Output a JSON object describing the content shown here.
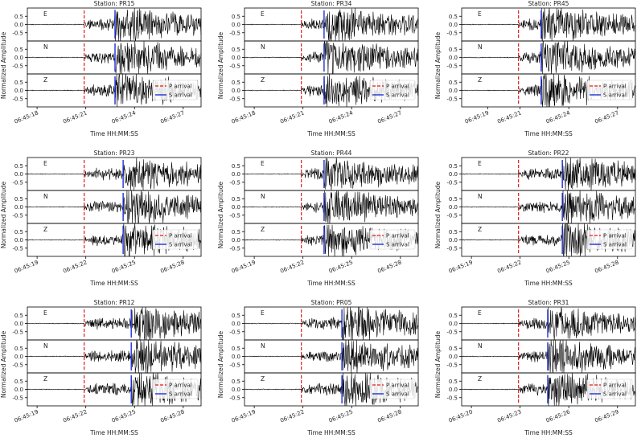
{
  "figure": {
    "xlabel": "Time HH:MM:SS",
    "ylabel": "Normalized Amplitude",
    "legend": {
      "p_label": "P arrival",
      "s_label": "S arrival",
      "placement": "lower-right of Z panel",
      "p_color": "#e41a1c",
      "s_color": "#1f2fd6"
    },
    "trace_color": "#000000"
  },
  "chart_data": [
    {
      "type": "line",
      "title": "Station: PR15",
      "xlabel": "Time HH:MM:SS",
      "ylabel": "Normalized Amplitude",
      "components": [
        "E",
        "N",
        "Z"
      ],
      "ylim": [
        -1,
        1
      ],
      "yticks": [
        "0.5",
        "0.0",
        "-0.5"
      ],
      "x_ticks": [
        "06:45:18",
        "06:45:21",
        "06:45:24",
        "06:45:27"
      ],
      "xlim_seconds": [
        17.4,
        28.1
      ],
      "p_arrival": "06:45:20.9",
      "s_arrival": "06:45:22.8",
      "legend": [
        "P arrival",
        "S arrival"
      ]
    },
    {
      "type": "line",
      "title": "Station: PR34",
      "xlabel": "Time HH:MM:SS",
      "ylabel": "Normalized Amplitude",
      "components": [
        "E",
        "N",
        "Z"
      ],
      "ylim": [
        -1,
        1
      ],
      "yticks": [
        "0.5",
        "0.0",
        "-0.5"
      ],
      "x_ticks": [
        "06:45:18",
        "06:45:21",
        "06:45:24",
        "06:45:27"
      ],
      "xlim_seconds": [
        17.4,
        28.1
      ],
      "p_arrival": "06:45:20.9",
      "s_arrival": "06:45:22.3",
      "legend": [
        "P arrival",
        "S arrival"
      ]
    },
    {
      "type": "line",
      "title": "Station: PR45",
      "xlabel": "Time HH:MM:SS",
      "ylabel": "Normalized Amplitude",
      "components": [
        "E",
        "N",
        "Z"
      ],
      "ylim": [
        -1,
        1
      ],
      "yticks": [
        "0.5",
        "0.0",
        "-0.5"
      ],
      "x_ticks": [
        "06:45:19",
        "06:45:21",
        "06:45:24",
        "06:45:27"
      ],
      "xlim_seconds": [
        17.4,
        28.1
      ],
      "p_arrival": "06:45:20.9",
      "s_arrival": "06:45:22.3",
      "legend": [
        "P arrival",
        "S arrival"
      ]
    },
    {
      "type": "line",
      "title": "Station: PR23",
      "xlabel": "Time HH:MM:SS",
      "ylabel": "Normalized Amplitude",
      "components": [
        "E",
        "N",
        "Z"
      ],
      "ylim": [
        -1,
        1
      ],
      "yticks": [
        "0.5",
        "0.0",
        "-0.5"
      ],
      "x_ticks": [
        "06:45:19",
        "06:45:22",
        "06:45:25",
        "06:45:28"
      ],
      "xlim_seconds": [
        18.4,
        29.1
      ],
      "p_arrival": "06:45:21.9",
      "s_arrival": "06:45:24.3",
      "legend": [
        "P arrival",
        "S arrival"
      ]
    },
    {
      "type": "line",
      "title": "Station: PR44",
      "xlabel": "Time HH:MM:SS",
      "ylabel": "Normalized Amplitude",
      "components": [
        "E",
        "N",
        "Z"
      ],
      "ylim": [
        -1,
        1
      ],
      "yticks": [
        "0.5",
        "0.0",
        "-0.5"
      ],
      "x_ticks": [
        "06:45:19",
        "06:45:22",
        "06:45:25",
        "06:45:28"
      ],
      "xlim_seconds": [
        18.4,
        29.1
      ],
      "p_arrival": "06:45:21.9",
      "s_arrival": "06:45:23.3",
      "legend": [
        "P arrival",
        "S arrival"
      ]
    },
    {
      "type": "line",
      "title": "Station: PR22",
      "xlabel": "Time HH:MM:SS",
      "ylabel": "Normalized Amplitude",
      "components": [
        "E",
        "N",
        "Z"
      ],
      "ylim": [
        -1,
        1
      ],
      "yticks": [
        "0.5",
        "0.0",
        "-0.5"
      ],
      "x_ticks": [
        "06:45:19",
        "06:45:22",
        "06:45:25",
        "06:45:28"
      ],
      "xlim_seconds": [
        18.4,
        29.1
      ],
      "p_arrival": "06:45:21.9",
      "s_arrival": "06:45:24.6",
      "legend": [
        "P arrival",
        "S arrival"
      ]
    },
    {
      "type": "line",
      "title": "Station: PR12",
      "xlabel": "Time HH:MM:SS",
      "ylabel": "Normalized Amplitude",
      "components": [
        "E",
        "N",
        "Z"
      ],
      "ylim": [
        -1,
        1
      ],
      "yticks": [
        "0.5",
        "0.0",
        "-0.5"
      ],
      "x_ticks": [
        "06:45:19",
        "06:45:22",
        "06:45:25",
        "06:45:28"
      ],
      "xlim_seconds": [
        18.4,
        29.1
      ],
      "p_arrival": "06:45:21.9",
      "s_arrival": "06:45:24.8",
      "legend": [
        "P arrival",
        "S arrival"
      ]
    },
    {
      "type": "line",
      "title": "Station: PR05",
      "xlabel": "Time HH:MM:SS",
      "ylabel": "Normalized Amplitude",
      "components": [
        "E",
        "N",
        "Z"
      ],
      "ylim": [
        -1,
        1
      ],
      "yticks": [
        "0.5",
        "0.0",
        "-0.5"
      ],
      "x_ticks": [
        "06:45:19",
        "06:45:22",
        "06:45:25",
        "06:45:28"
      ],
      "xlim_seconds": [
        18.4,
        29.1
      ],
      "p_arrival": "06:45:21.9",
      "s_arrival": "06:45:24.4",
      "legend": [
        "P arrival",
        "S arrival"
      ]
    },
    {
      "type": "line",
      "title": "Station: PR31",
      "xlabel": "Time HH:MM:SS",
      "ylabel": "Normalized Amplitude",
      "components": [
        "E",
        "N",
        "Z"
      ],
      "ylim": [
        -1,
        1
      ],
      "yticks": [
        "0.5",
        "0.0",
        "-0.5"
      ],
      "x_ticks": [
        "06:45:20",
        "06:45:23",
        "06:45:26",
        "06:45:29"
      ],
      "xlim_seconds": [
        19.4,
        30.1
      ],
      "p_arrival": "06:45:22.9",
      "s_arrival": "06:45:24.7",
      "legend": [
        "P arrival",
        "S arrival"
      ]
    }
  ]
}
